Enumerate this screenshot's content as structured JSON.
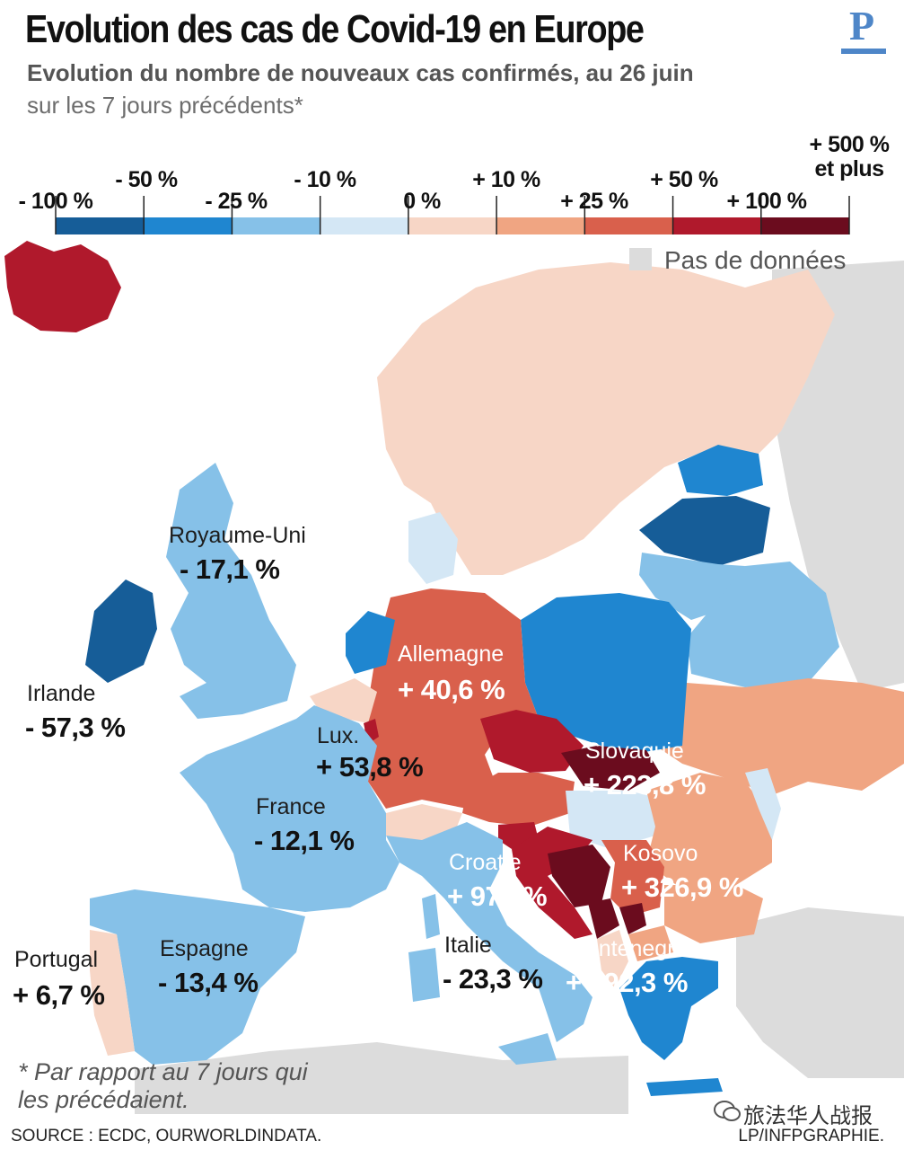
{
  "header": {
    "title": "Evolution des cas de Covid-19 en Europe",
    "subtitle": "Evolution du nombre de nouveaux cas confirmés, au 26 juin",
    "subtitle2": "sur les 7 jours précédents*",
    "logo_letter": "P"
  },
  "legend": {
    "labels": [
      "- 100 %",
      "- 50 %",
      "- 25 %",
      "- 10 %",
      "0 %",
      "+ 10 %",
      "+ 25 %",
      "+ 50 %",
      "+ 100 %",
      "+ 500 %",
      "et plus"
    ],
    "colors": [
      "#165d98",
      "#1f86d0",
      "#86c1e8",
      "#d4e7f5",
      "#f7d6c6",
      "#f0a582",
      "#d9604c",
      "#b0192c",
      "#6b0c1e"
    ],
    "no_data_label": "Pas de données",
    "no_data_color": "#dcdcdc"
  },
  "countries": {
    "uk": {
      "name": "Royaume-Uni",
      "value": "- 17,1 %"
    },
    "ireland": {
      "name": "Irlande",
      "value": "- 57,3 %"
    },
    "germany": {
      "name": "Allemagne",
      "value": "+ 40,6 %"
    },
    "luxembourg": {
      "name": "Lux.",
      "value": "+ 53,8 %"
    },
    "france": {
      "name": "France",
      "value": "- 12,1 %"
    },
    "slovakia": {
      "name": "Slovaquie",
      "value": "+ 223,8 %"
    },
    "croatia": {
      "name": "Croatie",
      "value": "+ 970 %"
    },
    "kosovo": {
      "name": "Kosovo",
      "value": "+ 326,9 %"
    },
    "montenegro": {
      "name": "Montenegro",
      "value": "+ 492,3 %"
    },
    "italy": {
      "name": "Italie",
      "value": "- 23,3 %"
    },
    "spain": {
      "name": "Espagne",
      "value": "- 13,4 %"
    },
    "portugal": {
      "name": "Portugal",
      "value": "+ 6,7 %"
    }
  },
  "footer": {
    "note_line1": "* Par rapport au 7 jours qui",
    "note_line2": "les précédaient.",
    "source": "SOURCE : ECDC, OURWORLDINDATA.",
    "credit": "LP/INFPGRAPHIE.",
    "wechat": "旅法华人战报"
  }
}
